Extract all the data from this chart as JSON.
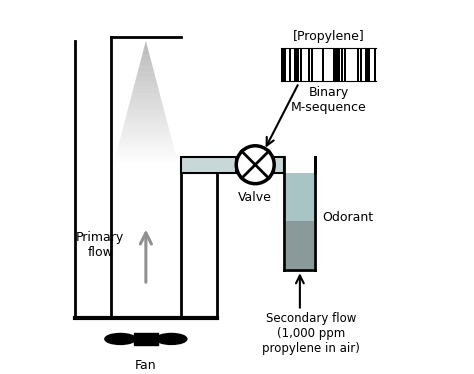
{
  "bg_color": "#ffffff",
  "line_color": "#000000",
  "primary_arrow_color": "#a0a0a0",
  "labels": {
    "propylene": "[Propylene]",
    "binary": "Binary\nM-sequence",
    "primary_flow": "Primary\nflow",
    "valve": "Valve",
    "odorant": "Odorant",
    "fan": "Fan",
    "secondary_flow": "Secondary flow\n(1,000 ppm\npropylene in air)"
  },
  "lw": 2.0,
  "figsize": [
    4.74,
    3.74
  ],
  "dpi": 100,
  "xlim": [
    0,
    10
  ],
  "ylim": [
    0,
    10
  ]
}
